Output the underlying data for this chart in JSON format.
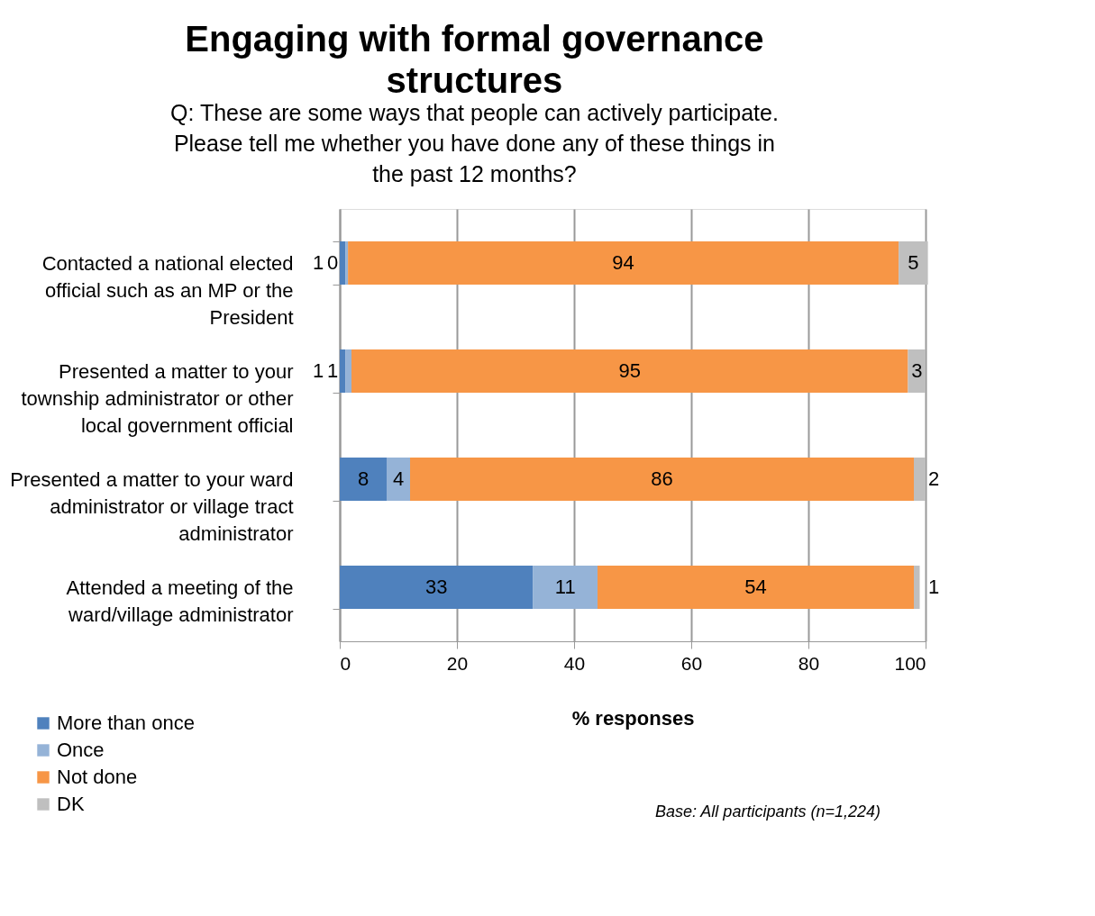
{
  "chart_data": {
    "type": "bar",
    "orientation": "horizontal",
    "stacked": true,
    "title": "Engaging with formal governance structures",
    "subtitle": "Q: These are some ways that people can actively participate. Please tell me whether you have done any of these things in the past 12 months?",
    "xlabel": "% responses",
    "categories": [
      "Contacted a national elected official such as an MP or the President",
      "Presented a matter to your township administrator or other local government official",
      "Presented a matter to your ward administrator or village tract administrator",
      "Attended a meeting of the ward/village administrator"
    ],
    "series": [
      {
        "name": "More than once",
        "color": "#4f81bd",
        "values": [
          1,
          1,
          8,
          33
        ],
        "value_labels": [
          "1",
          "1",
          "8",
          "33"
        ]
      },
      {
        "name": "Once",
        "color": "#95b3d7",
        "values": [
          0.4,
          1,
          4,
          11
        ],
        "value_labels": [
          "0",
          "1",
          "4",
          "11"
        ]
      },
      {
        "name": "Not done",
        "color": "#f79646",
        "values": [
          94,
          95,
          86,
          54
        ],
        "value_labels": [
          "94",
          "95",
          "86",
          "54"
        ]
      },
      {
        "name": "DK",
        "color": "#bfbfbf",
        "values": [
          5,
          3,
          2,
          1
        ],
        "value_labels": [
          "5",
          "3",
          "2",
          "1"
        ]
      }
    ],
    "xlim": [
      0,
      100
    ],
    "xticks": [
      0,
      20,
      40,
      60,
      80,
      100
    ],
    "grid": "x",
    "legend": "bottom left",
    "annotations": [
      "Base: All participants (n=1,224)"
    ]
  }
}
